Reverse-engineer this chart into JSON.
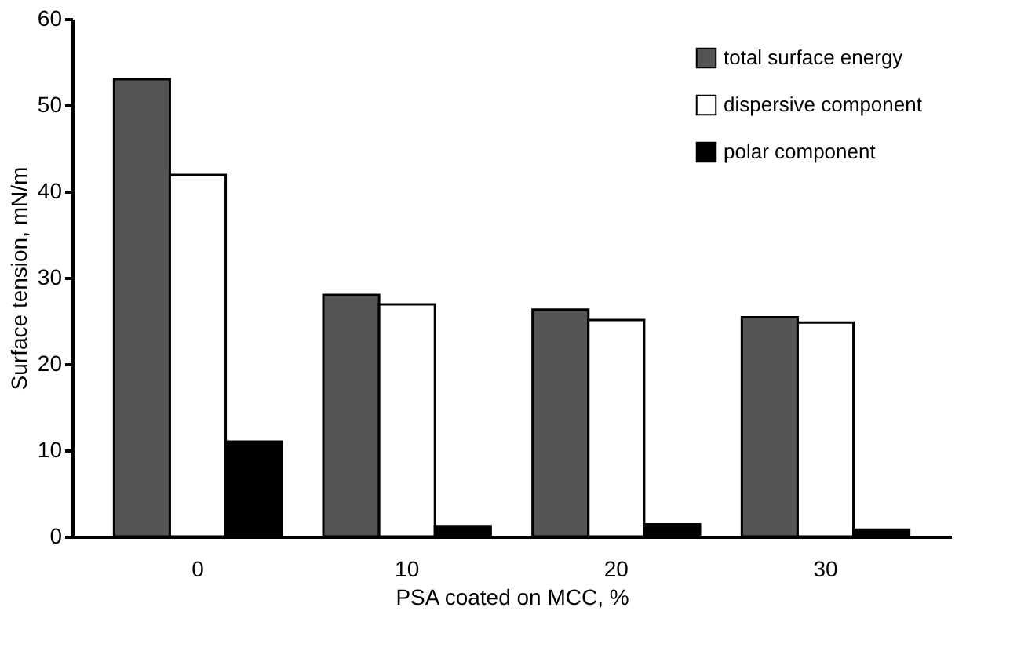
{
  "chart_data": {
    "type": "bar",
    "xlabel": "PSA coated on MCC, %",
    "ylabel": "Surface tension, mN/m",
    "categories": [
      "0",
      "10",
      "20",
      "30"
    ],
    "series": [
      {
        "name": "total surface energy",
        "color": "#555555",
        "values": [
          53,
          28,
          26.3,
          25.4
        ]
      },
      {
        "name": "dispersive component",
        "color": "#ffffff",
        "values": [
          41.9,
          26.9,
          25.1,
          24.8
        ]
      },
      {
        "name": "polar component",
        "color": "#000000",
        "values": [
          11,
          1.2,
          1.4,
          0.8
        ]
      }
    ],
    "ylim": [
      0,
      60
    ],
    "yticks": [
      0,
      10,
      20,
      30,
      40,
      50,
      60
    ],
    "grid": false,
    "legend": "top right"
  }
}
